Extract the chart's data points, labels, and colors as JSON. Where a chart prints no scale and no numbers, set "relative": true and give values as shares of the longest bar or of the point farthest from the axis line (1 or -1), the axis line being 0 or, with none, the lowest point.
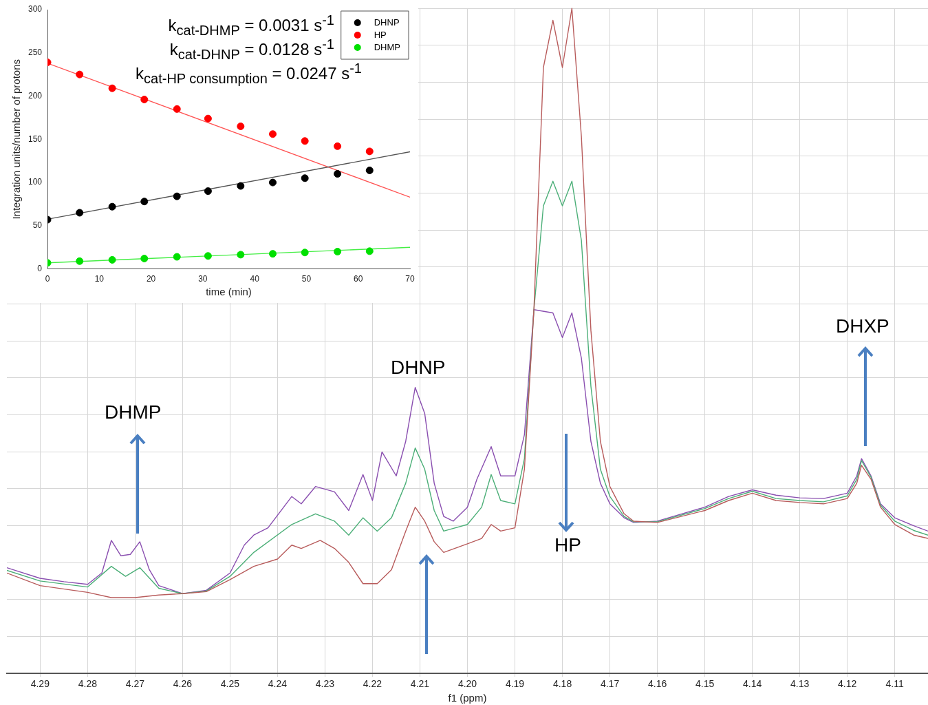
{
  "chart_data": [
    {
      "type": "scatter",
      "xlabel": "time (min)",
      "ylabel": "Integration units/number of protons",
      "xlim": [
        0,
        70
      ],
      "ylim": [
        0,
        300
      ],
      "xticks": [
        0,
        10,
        20,
        30,
        40,
        50,
        60,
        70
      ],
      "yticks": [
        0,
        50,
        100,
        150,
        200,
        250,
        300
      ],
      "grid": false,
      "legend": "top right",
      "marker": "circle",
      "annotations": [
        "k$_{cat-DHMP}$ = 0.0031 s$^{-1}$",
        "k$_{cat-DHNP}$ = 0.0128 s$^{-1}$",
        "k$_{cat-HP consumption}$ = 0.0247 s$^{-1}$"
      ],
      "x": [
        0,
        6.2,
        12.5,
        18.7,
        25,
        31,
        37.3,
        43.5,
        49.7,
        56,
        62.2
      ],
      "series": [
        {
          "name": "DHNP",
          "color": "#000000",
          "values": [
            57,
            65,
            72,
            78,
            84,
            90,
            96,
            100,
            105,
            110,
            114
          ]
        },
        {
          "name": "HP",
          "color": "#ff0000",
          "values": [
            239,
            225,
            209,
            196,
            185,
            174,
            165,
            156,
            148,
            142,
            136
          ]
        },
        {
          "name": "DHMP",
          "color": "#00e000",
          "values": [
            7,
            9,
            10.5,
            12,
            14,
            15,
            16.5,
            17.5,
            19,
            20,
            20.5
          ]
        },
        {
          "type": "line",
          "marker": "none",
          "color": "#555555",
          "x": [
            0,
            70
          ],
          "values": [
            57.5,
            135.5
          ]
        },
        {
          "type": "line",
          "marker": "none",
          "color": "#ff5555",
          "x": [
            0,
            70
          ],
          "values": [
            238,
            83
          ]
        },
        {
          "type": "line",
          "marker": "none",
          "color": "#44ee44",
          "x": [
            0,
            70
          ],
          "values": [
            7,
            25
          ]
        }
      ]
    },
    {
      "type": "line",
      "relative": true,
      "xlabel": "f1 (ppm)",
      "xlim": [
        4.297,
        4.103
      ],
      "xticks": [
        4.29,
        4.28,
        4.27,
        4.26,
        4.25,
        4.24,
        4.23,
        4.22,
        4.21,
        {
          "value": 4.2,
          "label": "4.20"
        },
        4.19,
        4.18,
        4.17,
        4.16,
        4.15,
        4.14,
        4.13,
        4.12,
        4.11
      ],
      "grid": true,
      "marker": "none",
      "annotations": [
        "DHMP",
        "DHNP",
        "HP",
        "DHXP"
      ],
      "series": [
        {
          "color": "#b85c5c",
          "x": [
            4.297,
            4.29,
            4.28,
            4.275,
            4.27,
            4.265,
            4.26,
            4.255,
            4.25,
            4.245,
            4.24,
            4.237,
            4.235,
            4.231,
            4.228,
            4.225,
            4.222,
            4.219,
            4.216,
            4.213,
            4.211,
            4.209,
            4.207,
            4.205,
            4.2,
            4.197,
            4.195,
            4.193,
            4.19,
            4.188,
            4.186,
            4.184,
            4.182,
            4.18,
            4.178,
            4.176,
            4.174,
            4.172,
            4.17,
            4.167,
            4.165,
            4.16,
            4.15,
            4.145,
            4.14,
            4.135,
            4.13,
            4.125,
            4.12,
            4.118,
            4.117,
            4.115,
            4.113,
            4.11,
            4.106,
            4.103
          ],
          "values": [
            0.151,
            0.132,
            0.122,
            0.114,
            0.114,
            0.118,
            0.12,
            0.123,
            0.141,
            0.161,
            0.172,
            0.193,
            0.188,
            0.2,
            0.188,
            0.167,
            0.135,
            0.135,
            0.156,
            0.214,
            0.25,
            0.229,
            0.198,
            0.182,
            0.195,
            0.203,
            0.224,
            0.214,
            0.219,
            0.307,
            0.547,
            0.911,
            0.982,
            0.911,
            1,
            0.807,
            0.516,
            0.349,
            0.281,
            0.24,
            0.229,
            0.227,
            0.245,
            0.26,
            0.271,
            0.26,
            0.257,
            0.255,
            0.263,
            0.286,
            0.313,
            0.292,
            0.25,
            0.224,
            0.208,
            0.203
          ]
        },
        {
          "color": "#4caf78",
          "x": [
            4.297,
            4.29,
            4.28,
            4.275,
            4.272,
            4.269,
            4.265,
            4.26,
            4.255,
            4.25,
            4.245,
            4.237,
            4.232,
            4.228,
            4.225,
            4.222,
            4.219,
            4.216,
            4.213,
            4.211,
            4.209,
            4.207,
            4.205,
            4.2,
            4.197,
            4.195,
            4.193,
            4.19,
            4.188,
            4.186,
            4.184,
            4.182,
            4.18,
            4.178,
            4.176,
            4.174,
            4.172,
            4.17,
            4.167,
            4.165,
            4.16,
            4.15,
            4.145,
            4.14,
            4.135,
            4.13,
            4.125,
            4.12,
            4.118,
            4.117,
            4.115,
            4.113,
            4.11,
            4.106,
            4.103
          ],
          "values": [
            0.155,
            0.139,
            0.13,
            0.161,
            0.146,
            0.159,
            0.128,
            0.12,
            0.124,
            0.146,
            0.182,
            0.224,
            0.24,
            0.229,
            0.208,
            0.234,
            0.214,
            0.234,
            0.286,
            0.339,
            0.307,
            0.245,
            0.214,
            0.224,
            0.25,
            0.299,
            0.26,
            0.255,
            0.323,
            0.547,
            0.703,
            0.74,
            0.703,
            0.74,
            0.651,
            0.432,
            0.307,
            0.266,
            0.236,
            0.228,
            0.228,
            0.248,
            0.263,
            0.274,
            0.263,
            0.26,
            0.258,
            0.267,
            0.292,
            0.32,
            0.295,
            0.253,
            0.229,
            0.215,
            0.208
          ]
        },
        {
          "color": "#8a4fb0",
          "x": [
            4.297,
            4.29,
            4.285,
            4.28,
            4.277,
            4.275,
            4.273,
            4.271,
            4.269,
            4.267,
            4.265,
            4.26,
            4.255,
            4.25,
            4.247,
            4.245,
            4.242,
            4.237,
            4.235,
            4.232,
            4.228,
            4.225,
            4.222,
            4.22,
            4.218,
            4.215,
            4.213,
            4.211,
            4.209,
            4.207,
            4.205,
            4.203,
            4.2,
            4.198,
            4.195,
            4.193,
            4.19,
            4.188,
            4.186,
            4.182,
            4.18,
            4.178,
            4.176,
            4.174,
            4.172,
            4.17,
            4.167,
            4.165,
            4.16,
            4.15,
            4.145,
            4.14,
            4.135,
            4.13,
            4.125,
            4.12,
            4.118,
            4.117,
            4.115,
            4.113,
            4.11,
            4.106,
            4.103
          ],
          "values": [
            0.159,
            0.143,
            0.138,
            0.134,
            0.151,
            0.2,
            0.177,
            0.179,
            0.198,
            0.156,
            0.132,
            0.12,
            0.125,
            0.151,
            0.193,
            0.208,
            0.219,
            0.266,
            0.255,
            0.281,
            0.273,
            0.245,
            0.299,
            0.26,
            0.333,
            0.297,
            0.349,
            0.43,
            0.391,
            0.286,
            0.236,
            0.229,
            0.25,
            0.292,
            0.341,
            0.297,
            0.297,
            0.359,
            0.547,
            0.542,
            0.505,
            0.542,
            0.474,
            0.349,
            0.286,
            0.255,
            0.234,
            0.227,
            0.229,
            0.25,
            0.266,
            0.276,
            0.268,
            0.264,
            0.263,
            0.271,
            0.297,
            0.323,
            0.297,
            0.255,
            0.234,
            0.222,
            0.214
          ]
        }
      ]
    }
  ]
}
